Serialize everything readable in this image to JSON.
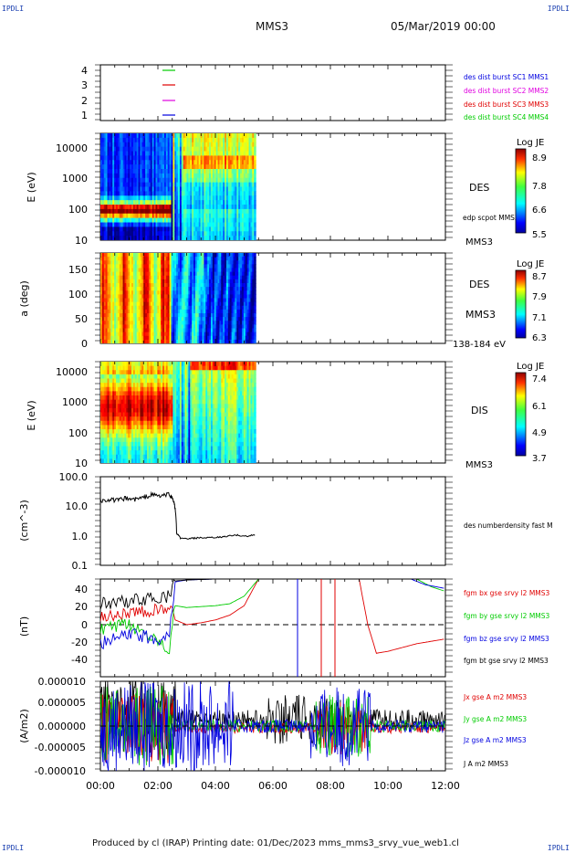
{
  "corners": {
    "tl": "IPDLI",
    "tr": "IPDLI",
    "bl": "IPDLI",
    "br": "IPDLI"
  },
  "header": {
    "spacecraft": "MMS3",
    "date": "05/Mar/2019 00:00"
  },
  "footer": {
    "text": "Produced by cl (IRAP)   Printing date: 01/Dec/2023   mms_mms3_srvy_vue_web1.cl"
  },
  "colors": {
    "red": "#e00000",
    "green": "#00cc00",
    "blue": "#0000e0",
    "magenta": "#e000e0",
    "black": "#000000"
  },
  "panels": {
    "p1": {
      "yticks": [
        "4",
        "3",
        "2",
        "1"
      ],
      "legend": [
        {
          "text": "des dist burst SC1 MMS1",
          "color": "#0000e0"
        },
        {
          "text": "des dist burst SC2 MMS2",
          "color": "#e000e0"
        },
        {
          "text": "des dist burst SC3 MMS3",
          "color": "#e00000"
        },
        {
          "text": "des dist burst SC4 MMS4",
          "color": "#00cc00"
        }
      ]
    },
    "p2": {
      "ylabel": "E (eV)",
      "yticks": [
        "10000",
        "1000",
        "100",
        "10"
      ],
      "side1": "DES",
      "side2": "edp scpot MMS3",
      "side3": "MMS3",
      "cbar_title": "Log JE",
      "cbar_ticks": [
        "8.9",
        "7.8",
        "6.6",
        "5.5"
      ]
    },
    "p3": {
      "ylabel": "a (deg)",
      "yticks": [
        "150",
        "100",
        "50",
        "0"
      ],
      "side1": "DES",
      "side2": "MMS3",
      "side3": "138-184 eV",
      "cbar_title": "Log JE",
      "cbar_ticks": [
        "8.7",
        "7.9",
        "7.1",
        "6.3"
      ]
    },
    "p4": {
      "ylabel": "E (eV)",
      "yticks": [
        "10000",
        "1000",
        "100",
        "10"
      ],
      "side1": "DIS",
      "side3": "MMS3",
      "cbar_title": "Log JE",
      "cbar_ticks": [
        "7.4",
        "6.1",
        "4.9",
        "3.7"
      ]
    },
    "p5": {
      "ylabel": "(cm^-3)",
      "yticks": [
        "100.0",
        "10.0",
        "1.0",
        "0.1"
      ],
      "legend": "des numberdensity fast M"
    },
    "p6": {
      "ylabel": "(nT)",
      "yticks": [
        "40",
        "20",
        "0",
        "-20",
        "-40"
      ],
      "legend": [
        {
          "text": "fgm bx gse srvy l2 MMS3",
          "color": "#e00000"
        },
        {
          "text": "fgm by gse srvy l2 MMS3",
          "color": "#00cc00"
        },
        {
          "text": "fgm bz gse srvy l2 MMS3",
          "color": "#0000e0"
        },
        {
          "text": "fgm bt gse srvy l2 MMS3",
          "color": "#000000"
        }
      ]
    },
    "p7": {
      "ylabel": "(A/m2)",
      "yticks": [
        "0.000010",
        "0.000005",
        "0.000000",
        "-0.000005",
        "-0.000010"
      ],
      "legend": [
        {
          "text": "Jx gse A m2 MMS3",
          "color": "#e00000"
        },
        {
          "text": "Jy gse A m2 MMS3",
          "color": "#00cc00"
        },
        {
          "text": "Jz gse A m2 MMS3",
          "color": "#0000e0"
        },
        {
          "text": "J A m2 MMS3",
          "color": "#000000"
        }
      ]
    }
  },
  "xaxis": {
    "ticks": [
      "00:00",
      "02:00",
      "04:00",
      "06:00",
      "08:00",
      "10:00",
      "12:00"
    ]
  },
  "chart_data": [
    {
      "type": "line",
      "name": "burst intervals",
      "ylim": [
        0.5,
        4.5
      ],
      "series": [
        {
          "name": "des dist burst SC1 MMS1",
          "x_hours": [
            2.25,
            2.6
          ],
          "y": 1
        },
        {
          "name": "des dist burst SC2 MMS2",
          "x_hours": [
            2.25,
            2.6
          ],
          "y": 2
        },
        {
          "name": "des dist burst SC3 MMS3",
          "x_hours": [
            2.25,
            2.6
          ],
          "y": 3
        },
        {
          "name": "des dist burst SC4 MMS4",
          "x_hours": [
            2.25,
            2.6
          ],
          "y": 4
        }
      ]
    },
    {
      "type": "heatmap",
      "ylabel": "E (eV)",
      "yscale": "log",
      "ylim": [
        10,
        30000
      ],
      "xrange_hours": [
        0,
        5.4
      ],
      "zlabel": "Log JE",
      "zlim": [
        5.5,
        8.9
      ]
    },
    {
      "type": "heatmap",
      "ylabel": "a (deg)",
      "ylim": [
        0,
        180
      ],
      "xrange_hours": [
        0,
        5.4
      ],
      "zlabel": "Log JE",
      "zlim": [
        6.3,
        8.7
      ]
    },
    {
      "type": "heatmap",
      "ylabel": "E (eV)",
      "yscale": "log",
      "ylim": [
        10,
        30000
      ],
      "xrange_hours": [
        0,
        5.4
      ],
      "zlabel": "Log JE",
      "zlim": [
        3.7,
        7.4
      ]
    },
    {
      "type": "line",
      "ylabel": "(cm^-3)",
      "yscale": "log",
      "ylim": [
        0.1,
        100
      ],
      "series": [
        {
          "name": "des numberdensity fast M",
          "x": [
            0.0,
            0.3,
            0.6,
            0.9,
            1.2,
            1.5,
            1.8,
            2.1,
            2.4,
            2.55,
            2.65,
            2.8,
            3.1,
            3.4,
            3.8,
            4.2,
            4.5,
            4.8,
            5.1,
            5.4
          ],
          "y": [
            15,
            17,
            16,
            19,
            17,
            20,
            25,
            22,
            26,
            15,
            1.2,
            0.8,
            0.8,
            0.85,
            0.85,
            0.9,
            1.0,
            1.05,
            0.95,
            1.1
          ]
        }
      ]
    },
    {
      "type": "line",
      "ylabel": "(nT)",
      "ylim": [
        -48,
        48
      ],
      "series": [
        {
          "name": "fgm bx gse srvy l2 MMS3",
          "x": [
            0,
            1.0,
            2.0,
            2.4,
            2.6,
            3.0,
            3.5,
            4.0,
            4.5,
            5.0,
            5.5,
            9.0,
            9.3,
            9.6,
            10.0,
            11.0,
            12.0
          ],
          "y": [
            8,
            12,
            15,
            18,
            5,
            0,
            2,
            5,
            10,
            20,
            48,
            48,
            0,
            -30,
            -28,
            -20,
            -15
          ]
        },
        {
          "name": "fgm by gse srvy l2 MMS3",
          "x": [
            0,
            1.0,
            2.0,
            2.4,
            2.6,
            3.0,
            3.5,
            4.0,
            4.5,
            5.0,
            5.5,
            11.0,
            11.5,
            12.0
          ],
          "y": [
            -5,
            0,
            -15,
            -25,
            20,
            18,
            19,
            20,
            22,
            30,
            48,
            48,
            40,
            35
          ]
        },
        {
          "name": "fgm bz gse srvy l2 MMS3",
          "x": [
            0,
            1.0,
            2.0,
            2.4,
            2.6,
            3.0,
            4.0,
            10.8,
            11.3,
            12.0
          ],
          "y": [
            -20,
            -10,
            -15,
            -10,
            45,
            47,
            48,
            48,
            42,
            38
          ]
        },
        {
          "name": "fgm bt gse srvy l2 MMS3",
          "x": [
            0,
            1.0,
            2.0,
            2.4,
            2.6,
            3.0,
            4.0,
            12.0
          ],
          "y": [
            22,
            25,
            28,
            30,
            46,
            47,
            48,
            48
          ]
        }
      ]
    },
    {
      "type": "line",
      "ylabel": "(A/m2)",
      "ylim": [
        -1e-05,
        1e-05
      ],
      "series": [
        {
          "name": "Jx gse A m2 MMS3"
        },
        {
          "name": "Jy gse A m2 MMS3"
        },
        {
          "name": "Jz gse A m2 MMS3"
        },
        {
          "name": "J A m2 MMS3"
        }
      ]
    }
  ]
}
